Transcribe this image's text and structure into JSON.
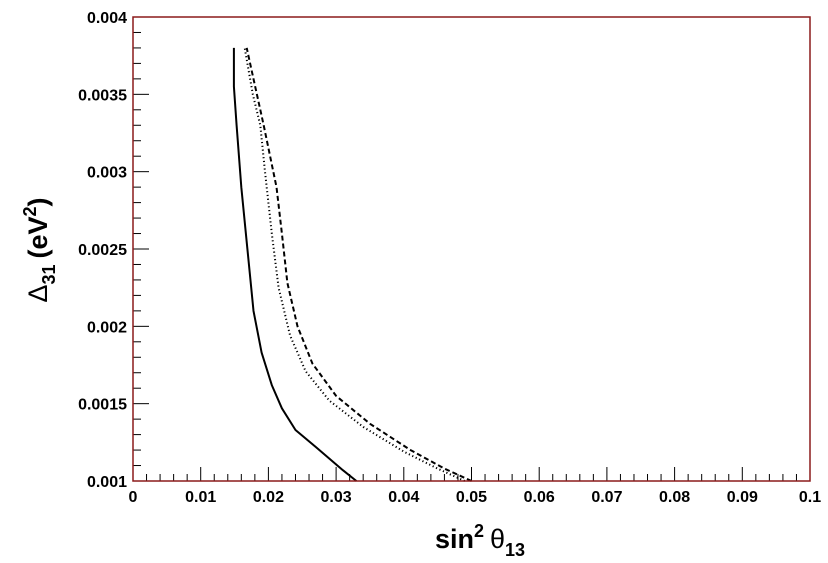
{
  "chart_data": {
    "type": "line",
    "title": "",
    "xlabel": {
      "base": "sin",
      "sup": "2",
      "symbol": "θ",
      "sub": "13"
    },
    "ylabel": {
      "symbol": "Δ",
      "sub": "31",
      "unit_open": "(eV",
      "unit_sup": "2",
      "unit_close": ")"
    },
    "xlim": [
      0,
      0.1
    ],
    "ylim": [
      0.001,
      0.004
    ],
    "x_ticks": [
      "0",
      "0.01",
      "0.02",
      "0.03",
      "0.04",
      "0.05",
      "0.06",
      "0.07",
      "0.08",
      "0.09",
      "0.1"
    ],
    "y_ticks": [
      "0.001",
      "0.0015",
      "0.002",
      "0.0025",
      "0.003",
      "0.0035",
      "0.004"
    ],
    "grid": false,
    "legend": "none",
    "frame_color": "#8b1a1a",
    "series": [
      {
        "style": "solid",
        "points": [
          [
            0.033,
            0.001
          ],
          [
            0.031,
            0.00107
          ],
          [
            0.027,
            0.00122
          ],
          [
            0.024,
            0.00133
          ],
          [
            0.022,
            0.00147
          ],
          [
            0.0205,
            0.00162
          ],
          [
            0.019,
            0.00183
          ],
          [
            0.0178,
            0.0021
          ],
          [
            0.0169,
            0.0025
          ],
          [
            0.016,
            0.0029
          ],
          [
            0.0153,
            0.0033
          ],
          [
            0.0149,
            0.00355
          ],
          [
            0.0149,
            0.0038
          ]
        ]
      },
      {
        "style": "dotted",
        "points": [
          [
            0.049,
            0.001
          ],
          [
            0.045,
            0.00108
          ],
          [
            0.04,
            0.00119
          ],
          [
            0.034,
            0.00135
          ],
          [
            0.029,
            0.00152
          ],
          [
            0.0255,
            0.00171
          ],
          [
            0.0232,
            0.00194
          ],
          [
            0.0215,
            0.00225
          ],
          [
            0.0205,
            0.0026
          ],
          [
            0.0195,
            0.003
          ],
          [
            0.0188,
            0.0033
          ],
          [
            0.0177,
            0.0035
          ],
          [
            0.0165,
            0.0038
          ]
        ]
      },
      {
        "style": "dashed",
        "points": [
          [
            0.05,
            0.001
          ],
          [
            0.046,
            0.00108
          ],
          [
            0.041,
            0.0012
          ],
          [
            0.035,
            0.00137
          ],
          [
            0.03,
            0.00155
          ],
          [
            0.0265,
            0.00176
          ],
          [
            0.0243,
            0.002
          ],
          [
            0.0228,
            0.00228
          ],
          [
            0.022,
            0.0026
          ],
          [
            0.0212,
            0.0029
          ],
          [
            0.0193,
            0.0033
          ],
          [
            0.0178,
            0.0036
          ],
          [
            0.0168,
            0.0038
          ]
        ]
      }
    ]
  }
}
